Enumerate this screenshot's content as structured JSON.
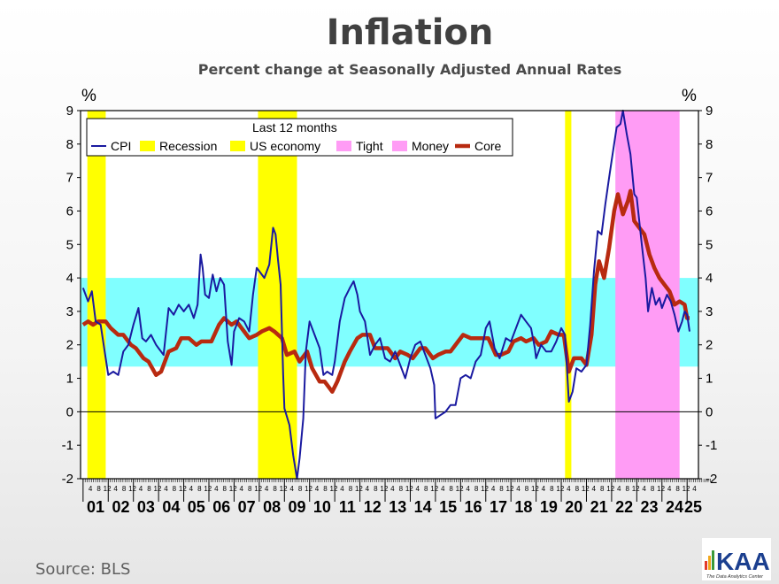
{
  "title": "Inflation",
  "subtitle": "Percent change at Seasonally Adjusted  Annual Rates",
  "source": "Source:  BLS",
  "logo": {
    "text": "KAA",
    "tagline": "The Data Analytics Center"
  },
  "colors": {
    "cpi": "#1a1aa0",
    "core": "#b82a10",
    "recession": "#ffff00",
    "tight_money": "#ff9cf5",
    "band": "#80ffff"
  },
  "chart_data": {
    "type": "line",
    "title": "Inflation",
    "subtitle": "Percent change at Seasonally Adjusted  Annual Rates",
    "ylabel_left": "%",
    "ylabel_right": "%",
    "ylim": [
      -2,
      9
    ],
    "yticks": [
      9,
      8,
      7,
      6,
      5,
      4,
      3,
      2,
      1,
      0,
      -1,
      -2
    ],
    "xlim": [
      2000.9,
      2025.45
    ],
    "year_labels": [
      "01",
      "02",
      "03",
      "04",
      "05",
      "06",
      "07",
      "08",
      "09",
      "10",
      "11",
      "12",
      "13",
      "14",
      "15",
      "16",
      "17",
      "18",
      "19",
      "20",
      "21",
      "22",
      "23",
      "24",
      "25"
    ],
    "month_tick_labels": [
      "4",
      "8",
      "12"
    ],
    "legend": {
      "title": "Last 12 months",
      "placement": "top-left",
      "entries": [
        "CPI",
        "Recession",
        "US economy",
        "Tight",
        "Money",
        "Core"
      ]
    },
    "reference_band": {
      "from": 1.35,
      "to": 4.0
    },
    "reference_line": 0,
    "recessions": [
      [
        2001.17,
        2001.9
      ],
      [
        2007.95,
        2009.5
      ],
      [
        2020.15,
        2020.4
      ]
    ],
    "tight_money": [
      [
        2022.15,
        2024.7
      ]
    ],
    "series": [
      {
        "name": "CPI",
        "points": [
          [
            2001.0,
            3.7
          ],
          [
            2001.2,
            3.3
          ],
          [
            2001.35,
            3.6
          ],
          [
            2001.5,
            2.7
          ],
          [
            2001.7,
            2.6
          ],
          [
            2001.9,
            1.6
          ],
          [
            2002.0,
            1.1
          ],
          [
            2002.2,
            1.2
          ],
          [
            2002.4,
            1.1
          ],
          [
            2002.6,
            1.8
          ],
          [
            2002.8,
            2.0
          ],
          [
            2003.0,
            2.6
          ],
          [
            2003.2,
            3.1
          ],
          [
            2003.35,
            2.2
          ],
          [
            2003.5,
            2.1
          ],
          [
            2003.7,
            2.3
          ],
          [
            2003.9,
            2.0
          ],
          [
            2004.0,
            1.9
          ],
          [
            2004.2,
            1.7
          ],
          [
            2004.4,
            3.1
          ],
          [
            2004.6,
            2.9
          ],
          [
            2004.8,
            3.2
          ],
          [
            2005.0,
            3.0
          ],
          [
            2005.2,
            3.2
          ],
          [
            2005.4,
            2.8
          ],
          [
            2005.55,
            3.2
          ],
          [
            2005.67,
            4.7
          ],
          [
            2005.75,
            4.3
          ],
          [
            2005.85,
            3.5
          ],
          [
            2006.0,
            3.4
          ],
          [
            2006.15,
            4.1
          ],
          [
            2006.3,
            3.6
          ],
          [
            2006.45,
            4.0
          ],
          [
            2006.6,
            3.8
          ],
          [
            2006.75,
            2.1
          ],
          [
            2006.9,
            1.4
          ],
          [
            2007.0,
            2.4
          ],
          [
            2007.2,
            2.8
          ],
          [
            2007.4,
            2.7
          ],
          [
            2007.6,
            2.4
          ],
          [
            2007.75,
            3.5
          ],
          [
            2007.9,
            4.3
          ],
          [
            2008.0,
            4.2
          ],
          [
            2008.2,
            4.0
          ],
          [
            2008.4,
            4.4
          ],
          [
            2008.55,
            5.5
          ],
          [
            2008.65,
            5.3
          ],
          [
            2008.75,
            4.5
          ],
          [
            2008.85,
            3.8
          ],
          [
            2008.95,
            1.1
          ],
          [
            2009.0,
            0.1
          ],
          [
            2009.2,
            -0.4
          ],
          [
            2009.35,
            -1.3
          ],
          [
            2009.5,
            -2.0
          ],
          [
            2009.6,
            -1.4
          ],
          [
            2009.75,
            -0.2
          ],
          [
            2009.85,
            1.8
          ],
          [
            2010.0,
            2.7
          ],
          [
            2010.2,
            2.3
          ],
          [
            2010.4,
            1.9
          ],
          [
            2010.55,
            1.1
          ],
          [
            2010.7,
            1.2
          ],
          [
            2010.9,
            1.1
          ],
          [
            2011.0,
            1.5
          ],
          [
            2011.2,
            2.7
          ],
          [
            2011.4,
            3.4
          ],
          [
            2011.6,
            3.7
          ],
          [
            2011.75,
            3.9
          ],
          [
            2011.9,
            3.5
          ],
          [
            2012.0,
            3.0
          ],
          [
            2012.2,
            2.7
          ],
          [
            2012.4,
            1.7
          ],
          [
            2012.6,
            2.0
          ],
          [
            2012.8,
            2.2
          ],
          [
            2013.0,
            1.6
          ],
          [
            2013.2,
            1.5
          ],
          [
            2013.4,
            1.8
          ],
          [
            2013.6,
            1.4
          ],
          [
            2013.8,
            1.0
          ],
          [
            2014.0,
            1.6
          ],
          [
            2014.2,
            2.0
          ],
          [
            2014.4,
            2.1
          ],
          [
            2014.6,
            1.7
          ],
          [
            2014.8,
            1.3
          ],
          [
            2014.95,
            0.8
          ],
          [
            2015.0,
            -0.2
          ],
          [
            2015.2,
            -0.1
          ],
          [
            2015.4,
            0.0
          ],
          [
            2015.6,
            0.2
          ],
          [
            2015.8,
            0.2
          ],
          [
            2016.0,
            1.0
          ],
          [
            2016.2,
            1.1
          ],
          [
            2016.4,
            1.0
          ],
          [
            2016.6,
            1.5
          ],
          [
            2016.8,
            1.7
          ],
          [
            2017.0,
            2.5
          ],
          [
            2017.15,
            2.7
          ],
          [
            2017.35,
            1.9
          ],
          [
            2017.55,
            1.6
          ],
          [
            2017.8,
            2.2
          ],
          [
            2018.0,
            2.1
          ],
          [
            2018.2,
            2.5
          ],
          [
            2018.4,
            2.9
          ],
          [
            2018.6,
            2.7
          ],
          [
            2018.8,
            2.5
          ],
          [
            2018.95,
            1.9
          ],
          [
            2019.0,
            1.6
          ],
          [
            2019.2,
            2.0
          ],
          [
            2019.4,
            1.8
          ],
          [
            2019.6,
            1.8
          ],
          [
            2019.8,
            2.1
          ],
          [
            2020.0,
            2.5
          ],
          [
            2020.15,
            2.3
          ],
          [
            2020.3,
            0.3
          ],
          [
            2020.45,
            0.6
          ],
          [
            2020.6,
            1.3
          ],
          [
            2020.8,
            1.2
          ],
          [
            2021.0,
            1.4
          ],
          [
            2021.15,
            2.6
          ],
          [
            2021.3,
            4.2
          ],
          [
            2021.45,
            5.4
          ],
          [
            2021.6,
            5.3
          ],
          [
            2021.75,
            6.2
          ],
          [
            2021.9,
            7.0
          ],
          [
            2022.0,
            7.5
          ],
          [
            2022.2,
            8.5
          ],
          [
            2022.35,
            8.6
          ],
          [
            2022.45,
            9.0
          ],
          [
            2022.6,
            8.3
          ],
          [
            2022.75,
            7.7
          ],
          [
            2022.9,
            6.5
          ],
          [
            2023.0,
            6.4
          ],
          [
            2023.2,
            5.0
          ],
          [
            2023.35,
            4.0
          ],
          [
            2023.45,
            3.0
          ],
          [
            2023.6,
            3.7
          ],
          [
            2023.75,
            3.2
          ],
          [
            2023.9,
            3.4
          ],
          [
            2024.0,
            3.1
          ],
          [
            2024.2,
            3.5
          ],
          [
            2024.35,
            3.3
          ],
          [
            2024.5,
            2.9
          ],
          [
            2024.65,
            2.4
          ],
          [
            2024.8,
            2.7
          ],
          [
            2024.9,
            3.0
          ],
          [
            2025.0,
            2.9
          ],
          [
            2025.1,
            2.4
          ]
        ]
      },
      {
        "name": "Core",
        "points": [
          [
            2001.0,
            2.6
          ],
          [
            2001.2,
            2.7
          ],
          [
            2001.4,
            2.6
          ],
          [
            2001.6,
            2.7
          ],
          [
            2001.9,
            2.7
          ],
          [
            2002.1,
            2.5
          ],
          [
            2002.4,
            2.3
          ],
          [
            2002.6,
            2.3
          ],
          [
            2002.9,
            2.0
          ],
          [
            2003.1,
            1.9
          ],
          [
            2003.4,
            1.6
          ],
          [
            2003.6,
            1.5
          ],
          [
            2003.9,
            1.1
          ],
          [
            2004.1,
            1.2
          ],
          [
            2004.4,
            1.8
          ],
          [
            2004.7,
            1.9
          ],
          [
            2004.9,
            2.2
          ],
          [
            2005.2,
            2.2
          ],
          [
            2005.5,
            2.0
          ],
          [
            2005.7,
            2.1
          ],
          [
            2005.9,
            2.1
          ],
          [
            2006.1,
            2.1
          ],
          [
            2006.4,
            2.6
          ],
          [
            2006.6,
            2.8
          ],
          [
            2006.9,
            2.6
          ],
          [
            2007.1,
            2.7
          ],
          [
            2007.4,
            2.4
          ],
          [
            2007.6,
            2.2
          ],
          [
            2007.9,
            2.3
          ],
          [
            2008.1,
            2.4
          ],
          [
            2008.4,
            2.5
          ],
          [
            2008.6,
            2.4
          ],
          [
            2008.9,
            2.2
          ],
          [
            2009.1,
            1.7
          ],
          [
            2009.4,
            1.8
          ],
          [
            2009.6,
            1.5
          ],
          [
            2009.9,
            1.8
          ],
          [
            2010.1,
            1.3
          ],
          [
            2010.4,
            0.9
          ],
          [
            2010.6,
            0.9
          ],
          [
            2010.9,
            0.6
          ],
          [
            2011.1,
            0.9
          ],
          [
            2011.4,
            1.5
          ],
          [
            2011.6,
            1.8
          ],
          [
            2011.9,
            2.2
          ],
          [
            2012.1,
            2.3
          ],
          [
            2012.4,
            2.3
          ],
          [
            2012.6,
            1.9
          ],
          [
            2012.9,
            1.9
          ],
          [
            2013.1,
            1.9
          ],
          [
            2013.4,
            1.6
          ],
          [
            2013.6,
            1.8
          ],
          [
            2013.9,
            1.7
          ],
          [
            2014.1,
            1.6
          ],
          [
            2014.4,
            1.9
          ],
          [
            2014.6,
            1.9
          ],
          [
            2014.9,
            1.6
          ],
          [
            2015.1,
            1.7
          ],
          [
            2015.4,
            1.8
          ],
          [
            2015.6,
            1.8
          ],
          [
            2015.9,
            2.1
          ],
          [
            2016.1,
            2.3
          ],
          [
            2016.4,
            2.2
          ],
          [
            2016.6,
            2.2
          ],
          [
            2016.9,
            2.2
          ],
          [
            2017.1,
            2.2
          ],
          [
            2017.4,
            1.7
          ],
          [
            2017.6,
            1.7
          ],
          [
            2017.9,
            1.8
          ],
          [
            2018.1,
            2.1
          ],
          [
            2018.4,
            2.2
          ],
          [
            2018.6,
            2.1
          ],
          [
            2018.9,
            2.2
          ],
          [
            2019.1,
            2.0
          ],
          [
            2019.4,
            2.1
          ],
          [
            2019.6,
            2.4
          ],
          [
            2019.9,
            2.3
          ],
          [
            2020.1,
            2.3
          ],
          [
            2020.3,
            1.2
          ],
          [
            2020.5,
            1.6
          ],
          [
            2020.8,
            1.6
          ],
          [
            2021.0,
            1.4
          ],
          [
            2021.2,
            2.3
          ],
          [
            2021.35,
            3.8
          ],
          [
            2021.5,
            4.5
          ],
          [
            2021.7,
            4.0
          ],
          [
            2021.9,
            4.9
          ],
          [
            2022.1,
            6.0
          ],
          [
            2022.25,
            6.5
          ],
          [
            2022.45,
            5.9
          ],
          [
            2022.65,
            6.3
          ],
          [
            2022.75,
            6.6
          ],
          [
            2022.9,
            5.7
          ],
          [
            2023.1,
            5.5
          ],
          [
            2023.3,
            5.3
          ],
          [
            2023.5,
            4.7
          ],
          [
            2023.7,
            4.3
          ],
          [
            2023.9,
            4.0
          ],
          [
            2024.1,
            3.8
          ],
          [
            2024.3,
            3.6
          ],
          [
            2024.5,
            3.2
          ],
          [
            2024.7,
            3.3
          ],
          [
            2024.9,
            3.2
          ],
          [
            2025.0,
            2.8
          ],
          [
            2025.1,
            2.8
          ]
        ]
      }
    ]
  }
}
